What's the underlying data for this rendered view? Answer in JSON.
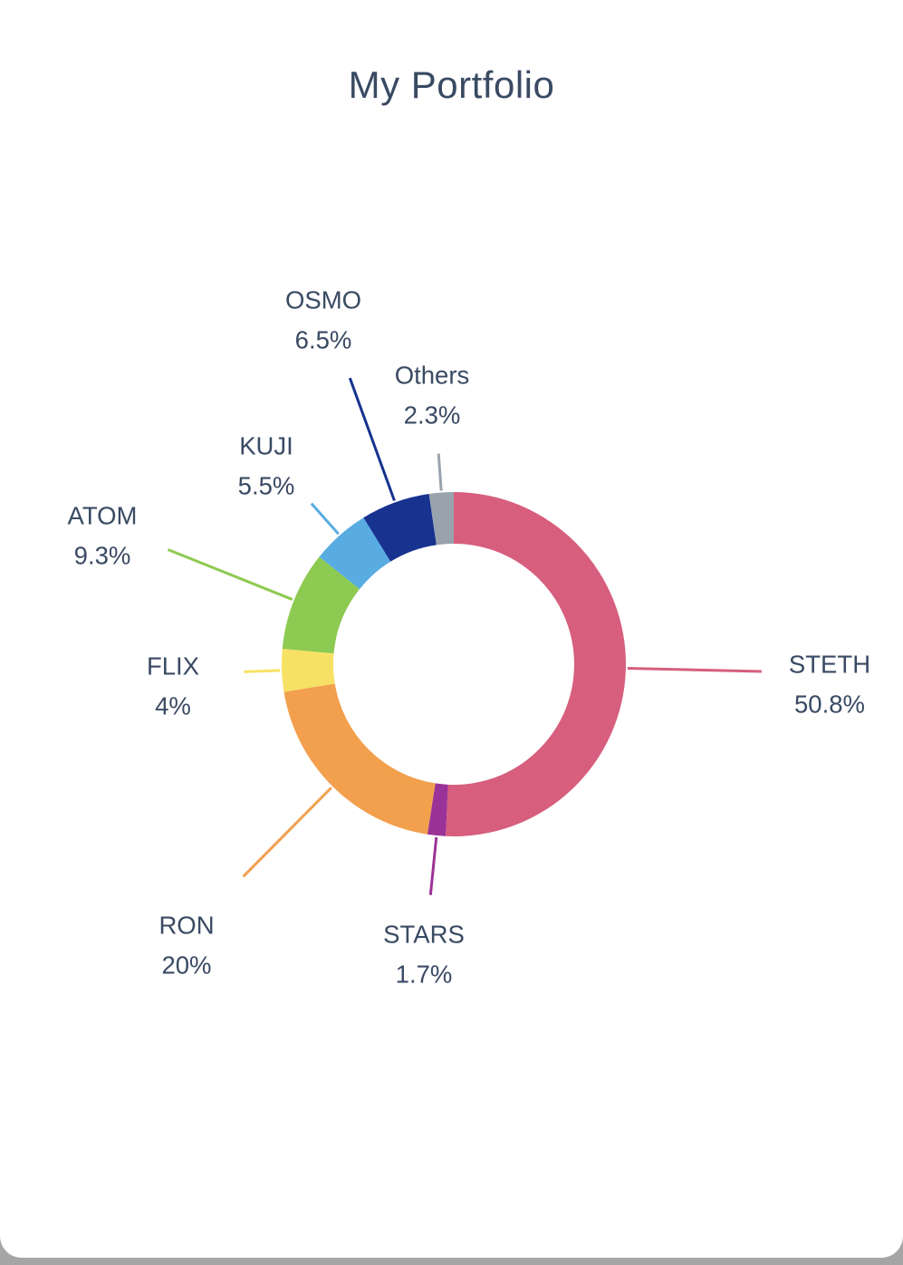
{
  "title": "My Portfolio",
  "theme": {
    "text_color": "#3a4a63",
    "card_background": "#ffffff",
    "page_background": "#a5a5a5"
  },
  "chart_data": {
    "type": "pie",
    "subtype": "donut",
    "title": "My Portfolio",
    "legend_position": "none",
    "label_style": "outside-leader-lines",
    "start_angle_deg": 0,
    "direction": "clockwise",
    "segments": [
      {
        "label": "STETH",
        "value": 50.8,
        "display_value": "50.8%",
        "color": "#d75e7d"
      },
      {
        "label": "STARS",
        "value": 1.7,
        "display_value": "1.7%",
        "color": "#9a3397"
      },
      {
        "label": "RON",
        "value": 20,
        "display_value": "20%",
        "color": "#f2a04e"
      },
      {
        "label": "FLIX",
        "value": 4,
        "display_value": "4%",
        "color": "#f7e164"
      },
      {
        "label": "ATOM",
        "value": 9.3,
        "display_value": "9.3%",
        "color": "#8dca51"
      },
      {
        "label": "KUJI",
        "value": 5.5,
        "display_value": "5.5%",
        "color": "#59ace2"
      },
      {
        "label": "OSMO",
        "value": 6.5,
        "display_value": "6.5%",
        "color": "#17338f"
      },
      {
        "label": "Others",
        "value": 2.3,
        "display_value": "2.3%",
        "color": "#99a3ae"
      }
    ]
  }
}
